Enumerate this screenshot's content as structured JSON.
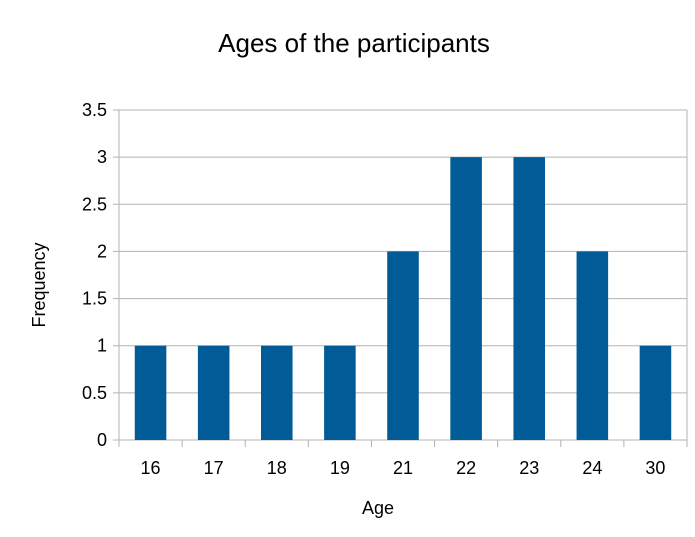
{
  "chart_data": {
    "type": "bar",
    "title": "Ages of the participants",
    "xlabel": "Age",
    "ylabel": "Frequency",
    "categories": [
      "16",
      "17",
      "18",
      "19",
      "21",
      "22",
      "23",
      "24",
      "30"
    ],
    "values": [
      1,
      1,
      1,
      1,
      2,
      3,
      3,
      2,
      1
    ],
    "ylim": [
      0,
      3.5
    ],
    "yticks": [
      0,
      0.5,
      1,
      1.5,
      2,
      2.5,
      3,
      3.5
    ],
    "ytick_labels": [
      "0",
      "0.5",
      "1",
      "1.5",
      "2",
      "2.5",
      "3",
      "3.5"
    ],
    "grid": "horizontal",
    "legend": "none",
    "bar_color": "#005b96"
  }
}
